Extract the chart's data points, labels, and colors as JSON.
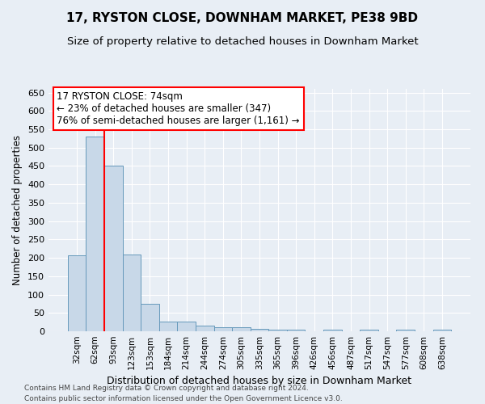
{
  "title": "17, RYSTON CLOSE, DOWNHAM MARKET, PE38 9BD",
  "subtitle": "Size of property relative to detached houses in Downham Market",
  "xlabel": "Distribution of detached houses by size in Downham Market",
  "ylabel": "Number of detached properties",
  "categories": [
    "32sqm",
    "62sqm",
    "93sqm",
    "123sqm",
    "153sqm",
    "184sqm",
    "214sqm",
    "244sqm",
    "274sqm",
    "305sqm",
    "335sqm",
    "365sqm",
    "396sqm",
    "426sqm",
    "456sqm",
    "487sqm",
    "517sqm",
    "547sqm",
    "577sqm",
    "608sqm",
    "638sqm"
  ],
  "values": [
    207,
    530,
    450,
    210,
    75,
    27,
    27,
    15,
    12,
    10,
    7,
    5,
    5,
    0,
    5,
    0,
    5,
    0,
    5,
    0,
    5
  ],
  "bar_color": "#c8d8e8",
  "bar_edge_color": "#6699bb",
  "red_line_x": 1.5,
  "annotation_text": "17 RYSTON CLOSE: 74sqm\n← 23% of detached houses are smaller (347)\n76% of semi-detached houses are larger (1,161) →",
  "annotation_box_color": "white",
  "annotation_box_edge": "red",
  "footer1": "Contains HM Land Registry data © Crown copyright and database right 2024.",
  "footer2": "Contains public sector information licensed under the Open Government Licence v3.0.",
  "ylim": [
    0,
    660
  ],
  "yticks": [
    0,
    50,
    100,
    150,
    200,
    250,
    300,
    350,
    400,
    450,
    500,
    550,
    600,
    650
  ],
  "background_color": "#e8eef5",
  "plot_bg_color": "#e8eef5",
  "grid_color": "white",
  "title_fontsize": 11,
  "subtitle_fontsize": 9.5,
  "ylabel_fontsize": 8.5,
  "xlabel_fontsize": 9,
  "tick_fontsize": 8,
  "xtick_fontsize": 7.5,
  "annotation_fontsize": 8.5,
  "footer_fontsize": 6.5
}
